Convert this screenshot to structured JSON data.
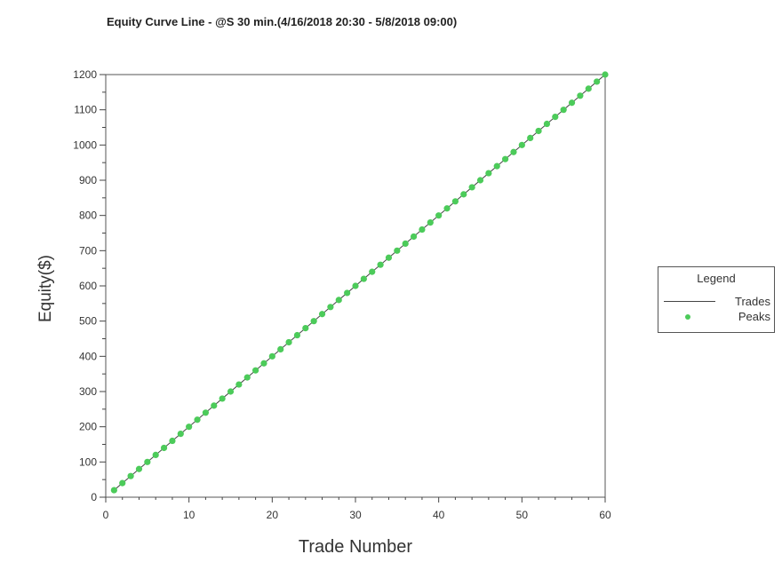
{
  "chart_data": {
    "type": "line",
    "title": "Equity Curve Line - @S 30 min.(4/16/2018 20:30 - 5/8/2018 09:00)",
    "xlabel": "Trade Number",
    "ylabel": "Equity($)",
    "xlim": [
      0,
      60
    ],
    "ylim": [
      0,
      1200
    ],
    "x_ticks": [
      0,
      10,
      20,
      30,
      40,
      50,
      60
    ],
    "y_ticks": [
      0,
      100,
      200,
      300,
      400,
      500,
      600,
      700,
      800,
      900,
      1000,
      1100,
      1200
    ],
    "grid": true,
    "legend": {
      "title": "Legend",
      "position": "right",
      "entries": [
        {
          "name": "Trades",
          "style": "line",
          "color": "#444444"
        },
        {
          "name": "Peaks",
          "style": "marker",
          "color": "#4ccb5a"
        }
      ]
    },
    "series": [
      {
        "name": "Trades",
        "x": [
          1,
          2,
          3,
          4,
          5,
          6,
          7,
          8,
          9,
          10,
          11,
          12,
          13,
          14,
          15,
          16,
          17,
          18,
          19,
          20,
          21,
          22,
          23,
          24,
          25,
          26,
          27,
          28,
          29,
          30,
          31,
          32,
          33,
          34,
          35,
          36,
          37,
          38,
          39,
          40,
          41,
          42,
          43,
          44,
          45,
          46,
          47,
          48,
          49,
          50,
          51,
          52,
          53,
          54,
          55,
          56,
          57,
          58,
          59,
          60
        ],
        "y": [
          20,
          40,
          60,
          80,
          100,
          120,
          140,
          160,
          180,
          200,
          220,
          240,
          260,
          280,
          300,
          320,
          340,
          360,
          380,
          400,
          420,
          440,
          460,
          480,
          500,
          520,
          540,
          560,
          580,
          600,
          620,
          640,
          660,
          680,
          700,
          720,
          740,
          760,
          780,
          800,
          820,
          840,
          860,
          880,
          900,
          920,
          940,
          960,
          980,
          1000,
          1020,
          1040,
          1060,
          1080,
          1100,
          1120,
          1140,
          1160,
          1180,
          1200
        ]
      },
      {
        "name": "Peaks",
        "x": [
          1,
          2,
          3,
          4,
          5,
          6,
          7,
          8,
          9,
          10,
          11,
          12,
          13,
          14,
          15,
          16,
          17,
          18,
          19,
          20,
          21,
          22,
          23,
          24,
          25,
          26,
          27,
          28,
          29,
          30,
          31,
          32,
          33,
          34,
          35,
          36,
          37,
          38,
          39,
          40,
          41,
          42,
          43,
          44,
          45,
          46,
          47,
          48,
          49,
          50,
          51,
          52,
          53,
          54,
          55,
          56,
          57,
          58,
          59,
          60
        ],
        "y": [
          20,
          40,
          60,
          80,
          100,
          120,
          140,
          160,
          180,
          200,
          220,
          240,
          260,
          280,
          300,
          320,
          340,
          360,
          380,
          400,
          420,
          440,
          460,
          480,
          500,
          520,
          540,
          560,
          580,
          600,
          620,
          640,
          660,
          680,
          700,
          720,
          740,
          760,
          780,
          800,
          820,
          840,
          860,
          880,
          900,
          920,
          940,
          960,
          980,
          1000,
          1020,
          1040,
          1060,
          1080,
          1100,
          1120,
          1140,
          1160,
          1180,
          1200
        ]
      }
    ]
  }
}
